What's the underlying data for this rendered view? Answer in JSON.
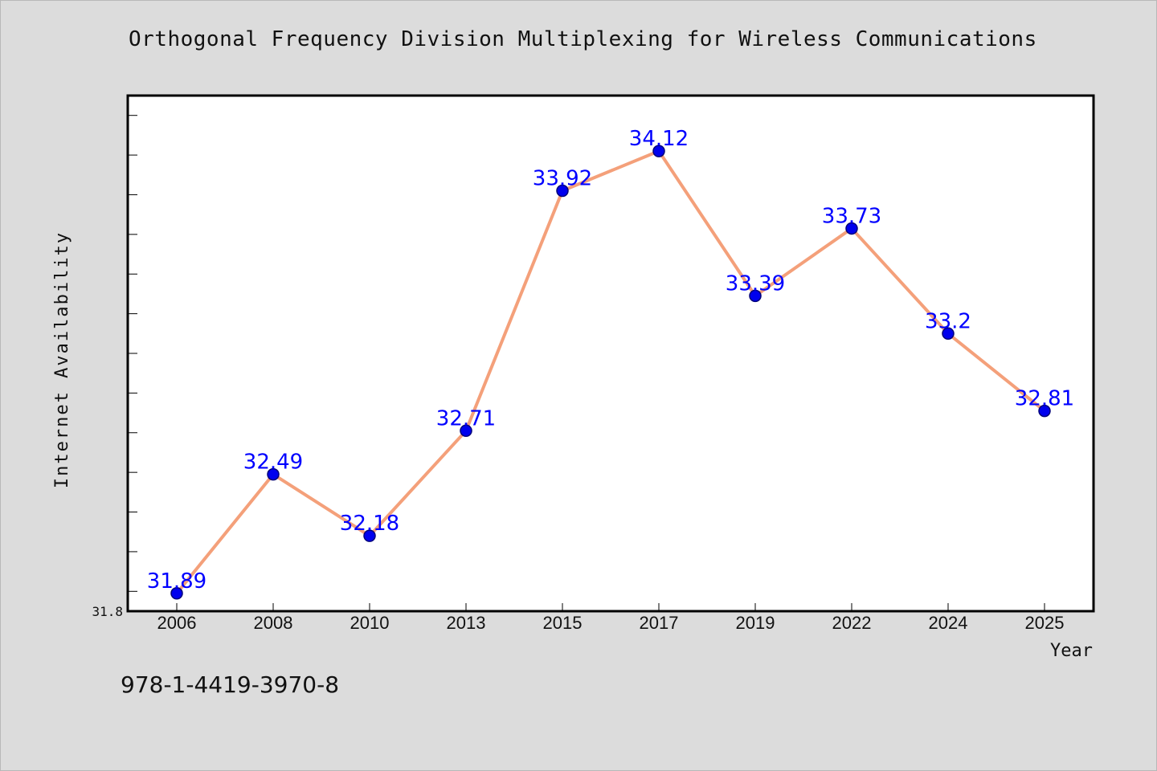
{
  "chart_data": {
    "type": "line",
    "title": "Orthogonal Frequency Division Multiplexing for Wireless Communications",
    "xlabel": "Year",
    "ylabel": "Internet Availability",
    "categories": [
      "2006",
      "2008",
      "2010",
      "2013",
      "2015",
      "2017",
      "2019",
      "2022",
      "2024",
      "2025"
    ],
    "series": [
      {
        "values": [
          31.89,
          32.49,
          32.18,
          32.71,
          33.92,
          34.12,
          33.39,
          33.73,
          33.2,
          32.81
        ]
      }
    ],
    "data_labels": [
      "31.89",
      "32.49",
      "32.18",
      "32.71",
      "33.92",
      "34.12",
      "33.39",
      "33.73",
      "33.2",
      "32.81"
    ],
    "y_tick_label": "31.8",
    "ylim": [
      31.8,
      34.4
    ],
    "grid": false,
    "legend": "none",
    "colors": {
      "line": "#f4a07a",
      "marker": "#0000ee",
      "marker_edge": "#00007a",
      "data_label": "#0000ff"
    }
  },
  "footer": {
    "isbn": "978-1-4419-3970-8"
  }
}
